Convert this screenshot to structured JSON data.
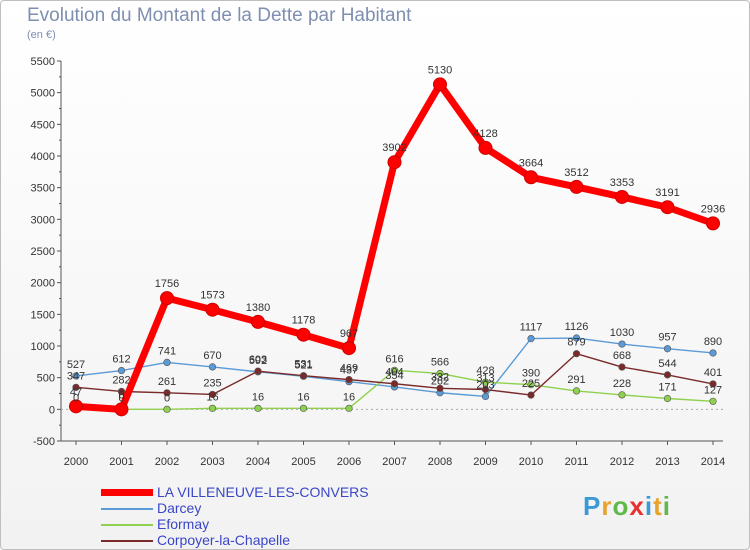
{
  "title": "Evolution du Montant de la Dette par Habitant",
  "subtitle": "(en €)",
  "logo": "Proxiti",
  "chart_data": {
    "type": "line",
    "title": "Evolution du Montant de la Dette par Habitant",
    "ylabel": "(en €)",
    "ylim": [
      -500,
      5500
    ],
    "yticks": [
      -500,
      0,
      500,
      1000,
      1500,
      2000,
      2500,
      3000,
      3500,
      4000,
      4500,
      5000,
      5500
    ],
    "x": [
      "2000",
      "2001",
      "2002",
      "2003",
      "2004",
      "2005",
      "2006",
      "2007",
      "2008",
      "2009",
      "2010",
      "2011",
      "2012",
      "2013",
      "2014"
    ],
    "grid": false,
    "legend": "bottom",
    "series": [
      {
        "name": "LA VILLENEUVE-LES-CONVERS",
        "color": "#ff0000",
        "values": [
          47,
          0,
          1756,
          1573,
          1380,
          1178,
          967,
          3902,
          5130,
          4128,
          3664,
          3512,
          3353,
          3191,
          2936
        ],
        "labels": [
          "47",
          "0",
          "1756",
          "1573",
          "1380",
          "1178",
          "967",
          "3902",
          "5130",
          "4128",
          "3664",
          "3512",
          "3353",
          "3191",
          "2936"
        ]
      },
      {
        "name": "Darcey",
        "color": "#5a9ad6",
        "values": [
          527,
          612,
          741,
          670,
          592,
          521,
          437,
          354,
          262,
          203,
          1117,
          1126,
          1030,
          957,
          890
        ],
        "labels": [
          "527",
          "612",
          "741",
          "670",
          "592",
          "521",
          "437",
          "354",
          "262",
          "203",
          "1117",
          "1126",
          "1030",
          "957",
          "890"
        ]
      },
      {
        "name": "Eformay",
        "color": "#8fd14f",
        "values": [
          0,
          0,
          0,
          16,
          16,
          16,
          16,
          616,
          566,
          428,
          390,
          291,
          228,
          171,
          127
        ],
        "labels": [
          "0",
          "0",
          "0",
          "16",
          "16",
          "16",
          "16",
          "616",
          "566",
          "428",
          "390",
          "291",
          "228",
          "171",
          "127"
        ]
      },
      {
        "name": "Corpoyer-la-Chapelle",
        "color": "#7b2a2a",
        "values": [
          347,
          282,
          261,
          235,
          603,
          531,
          469,
          404,
          332,
          313,
          225,
          879,
          668,
          544,
          401
        ],
        "labels": [
          "347",
          "282",
          "261",
          "235",
          "603",
          "531",
          "469",
          "404",
          "332",
          "313",
          "225",
          "879",
          "668",
          "544",
          "401"
        ]
      }
    ]
  }
}
